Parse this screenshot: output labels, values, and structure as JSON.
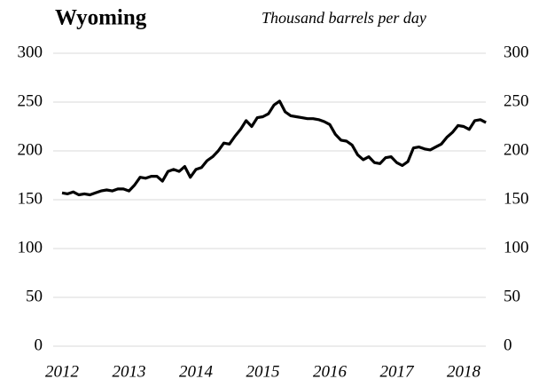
{
  "chart_data": {
    "type": "line",
    "title": "Wyoming",
    "subtitle": "Thousand barrels per day",
    "categories": [
      "2012",
      null,
      null,
      null,
      null,
      null,
      null,
      null,
      null,
      null,
      null,
      null,
      "2013",
      null,
      null,
      null,
      null,
      null,
      null,
      null,
      null,
      null,
      null,
      null,
      "2014",
      null,
      null,
      null,
      null,
      null,
      null,
      null,
      null,
      null,
      null,
      null,
      "2015",
      null,
      null,
      null,
      null,
      null,
      null,
      null,
      null,
      null,
      null,
      null,
      "2016",
      null,
      null,
      null,
      null,
      null,
      null,
      null,
      null,
      null,
      null,
      null,
      "2017",
      null,
      null,
      null,
      null,
      null,
      null,
      null,
      null,
      null,
      null,
      null,
      "2018",
      null,
      null,
      null,
      null
    ],
    "values": [
      157,
      156,
      158,
      155,
      156,
      155,
      157,
      159,
      160,
      159,
      161,
      161,
      159,
      165,
      173,
      172,
      174,
      174,
      169,
      179,
      181,
      179,
      184,
      173,
      181,
      183,
      190,
      194,
      200,
      208,
      207,
      215,
      222,
      231,
      225,
      234,
      235,
      238,
      247,
      251,
      240,
      236,
      235,
      234,
      233,
      233,
      232,
      230,
      227,
      217,
      211,
      210,
      206,
      196,
      191,
      194,
      188,
      187,
      193,
      194,
      188,
      185,
      189,
      203,
      204,
      202,
      201,
      204,
      207,
      214,
      219,
      226,
      225,
      222,
      231,
      232,
      229
    ],
    "color": "#000000",
    "ylim": [
      0,
      300
    ],
    "yticks": [
      0,
      50,
      100,
      150,
      200,
      250,
      300
    ],
    "y2lim": [
      0,
      300
    ],
    "y2ticks": [
      0,
      50,
      100,
      150,
      200,
      250,
      300
    ],
    "grid": true
  }
}
